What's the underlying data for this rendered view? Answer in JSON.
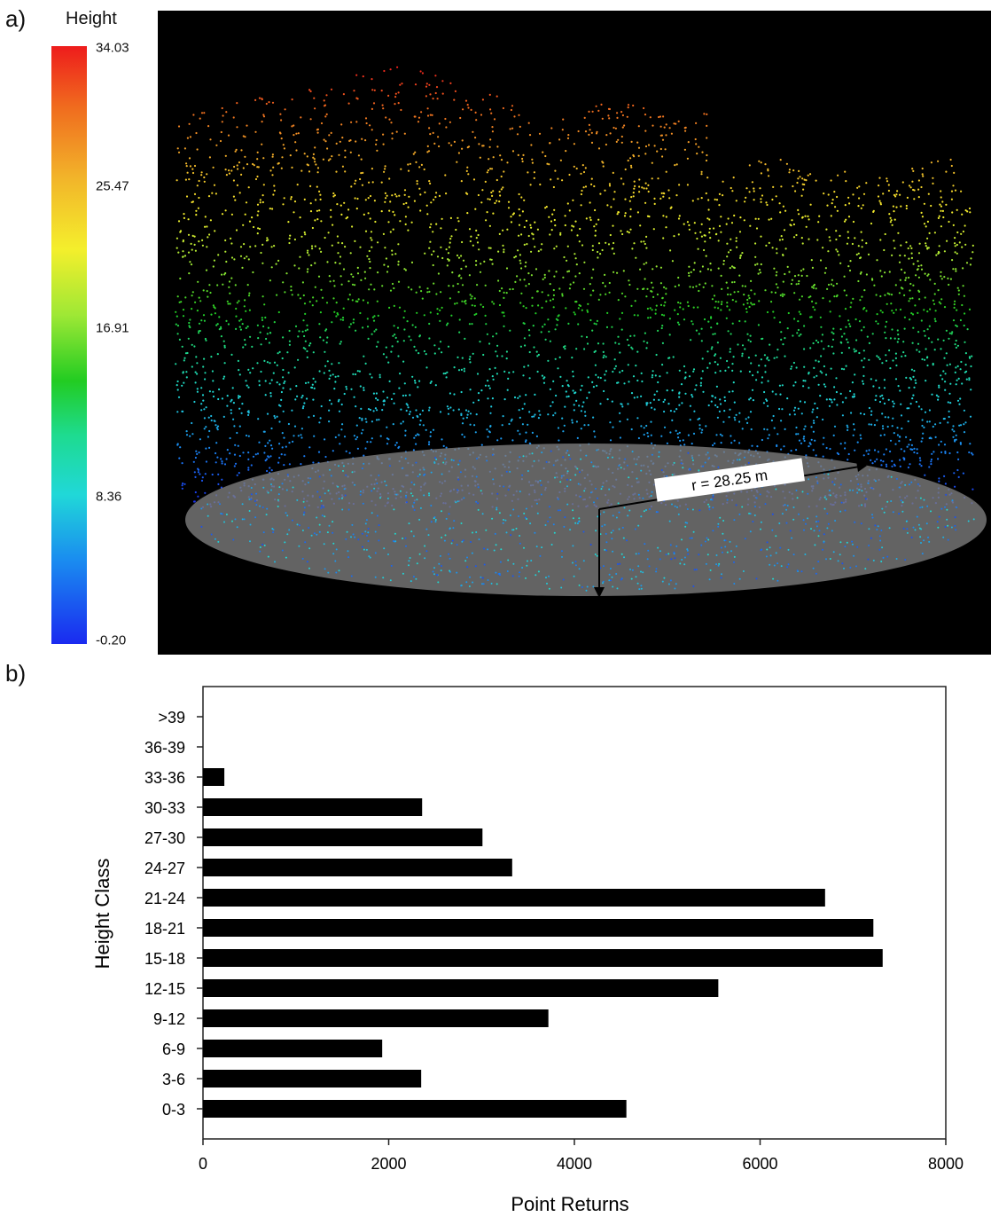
{
  "panel_a": {
    "label": "a)",
    "colorbar": {
      "title": "Height",
      "ticks": [
        "34.03",
        "25.47",
        "16.91",
        "8.36",
        "-0.20"
      ],
      "colors": [
        "#ee1c1c",
        "#f4ef2c",
        "#22cc22",
        "#20d8d8",
        "#1a2af0"
      ]
    },
    "radius_label": "r = 28.25 m"
  },
  "panel_b": {
    "label": "b)"
  },
  "chart_data": {
    "type": "bar",
    "orientation": "horizontal",
    "categories": [
      "0-3",
      "3-6",
      "6-9",
      "9-12",
      "12-15",
      "15-18",
      "18-21",
      "21-24",
      "24-27",
      "27-30",
      "30-33",
      "33-36",
      "36-39",
      ">39"
    ],
    "values": [
      4560,
      2350,
      1930,
      3720,
      5550,
      7320,
      7220,
      6700,
      3330,
      3010,
      2360,
      230,
      0,
      0
    ],
    "xlabel": "Point Returns",
    "ylabel": "Height Class",
    "xlim": [
      0,
      8000
    ],
    "xticks": [
      "0",
      "2000",
      "4000",
      "6000",
      "8000"
    ],
    "bar_color": "#000000",
    "grid": false
  }
}
